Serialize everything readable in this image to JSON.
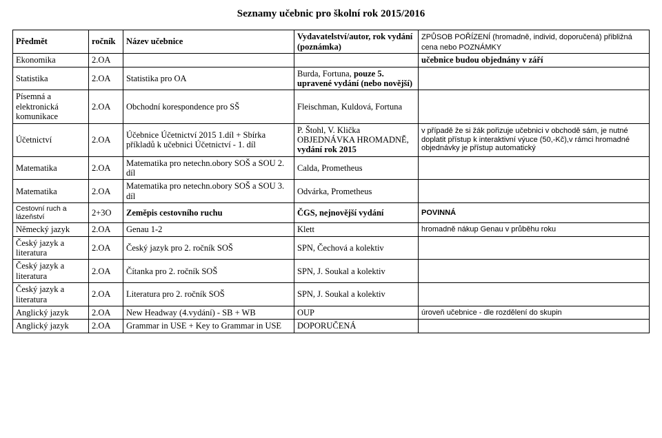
{
  "title": "Seznamy učebnic pro školní rok 2015/2016",
  "headers": {
    "c1": "Předmět",
    "c2": "ročník",
    "c3": "Název učebnice",
    "c4": "Vydavatelství/autor, rok vydání (poznámka)",
    "c5": "ZPŮSOB POŘÍZENÍ\n(hromadně, individ, doporučená) přibližná cena nebo POZNÁMKY"
  },
  "rows": [
    {
      "c1": "Ekonomika",
      "c2": "2.OA",
      "c3": "",
      "c4": "",
      "c5": "učebnice budou objednány v září",
      "c5_bold": true
    },
    {
      "c1": "Statistika",
      "c2": "2.OA",
      "c3": "Statistika pro OA",
      "c4": "Burda, Fortuna, pouze 5. upravené vydání (nebo novější)",
      "c4_bold_part": "pouze 5. upravené vydání (nebo novější)",
      "c5": ""
    },
    {
      "c1": "Písemná a elektronická komunikace",
      "c2": "2.OA",
      "c3": "Obchodní korespondence pro SŠ",
      "c4": "Fleischman, Kuldová, Fortuna",
      "c5": ""
    },
    {
      "c1": "Účetnictví",
      "c2": "2.OA",
      "c3": "Účebnice Účetnictví 2015 1.díl + Sbírka příkladů k učebnici Účetnictví - 1. díl",
      "c4_html": "P. Štohl, V. Klička<br>OBJEDNÁVKA HROMADNĚ, <b>vydání rok 2015</b>",
      "c5": "v případě že si žák pořizuje učebnici v obchodě sám, je nutné doplatit přístup k interaktivní výuce (50,-Kč),v rámci hromadné objednávky je přístup automatický",
      "c5_arial": true
    },
    {
      "c1": "Matematika",
      "c2": "2.OA",
      "c3": "Matematika pro netechn.obory SOŠ a SOU 2. díl",
      "c4": "Calda, Prometheus",
      "c5": ""
    },
    {
      "c1": "Matematika",
      "c2": "2.OA",
      "c3": "Matematika pro netechn.obory SOŠ a SOU 3. díl",
      "c4": "Odvárka, Prometheus",
      "c5": ""
    },
    {
      "c1": "Cestovní ruch a lázeňství",
      "c1_small": true,
      "c2": "2+3O",
      "c3": "Zeměpis cestovního ruchu",
      "c3_bold": true,
      "c4": "ČGS, nejnovější vydání",
      "c4_bold": true,
      "c5": "POVINNÁ",
      "c5_arial": true,
      "c5_bold": true
    },
    {
      "c1": "Německý jazyk",
      "c2": "2.OA",
      "c3": "Genau 1-2",
      "c4": "Klett",
      "c5": "hromadně nákup Genau v průběhu roku",
      "c5_arial": true
    },
    {
      "c1": "Český jazyk a literatura",
      "c2": "2.OA",
      "c3": "Český jazyk pro 2. ročník SOŠ",
      "c4": "SPN, Čechová a kolektiv",
      "c5": ""
    },
    {
      "c1": "Český jazyk a literatura",
      "c2": "2.OA",
      "c3": "Čítanka pro 2. ročník SOŠ",
      "c4": "SPN, J. Soukal a kolektiv",
      "c5": ""
    },
    {
      "c1": "Český jazyk a literatura",
      "c2": "2.OA",
      "c3": "Literatura pro 2. ročník SOŠ",
      "c4": "SPN, J. Soukal a kolektiv",
      "c5": ""
    },
    {
      "c1": "Anglický jazyk",
      "c2": "2.OA",
      "c3": "New Headway (4.vydání) - SB + WB",
      "c4": "OUP",
      "c5": "úroveň učebnice - dle rozdělení do skupin",
      "c5_arial": true
    },
    {
      "c1": "Anglický jazyk",
      "c2": "2.OA",
      "c3": "Grammar in USE + Key to Grammar in USE",
      "c4": "DOPORUČENÁ",
      "c5": ""
    }
  ]
}
